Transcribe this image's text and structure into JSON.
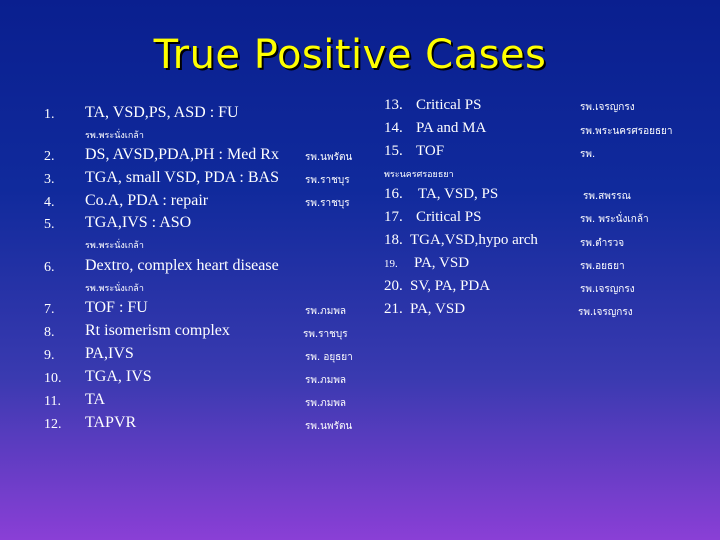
{
  "slide": {
    "title": "True Positive Cases",
    "left_items": [
      {
        "num": "1.",
        "text": "TA, VSD,PS, ASD  : FU",
        "sub": "รพ.พระนั่งเกล้า",
        "hosp": ""
      },
      {
        "num": "2.",
        "text": "DS, AVSD,PDA,PH : Med Rx",
        "sub": "",
        "hosp": "รพ.นพรัตน"
      },
      {
        "num": "3.",
        "text": "TGA, small VSD, PDA : BAS",
        "sub": "",
        "hosp": "รพ.ราชบุร"
      },
      {
        "num": "4.",
        "text": "Co.A, PDA : repair",
        "sub": "",
        "hosp": "รพ.ราชบุร"
      },
      {
        "num": "5.",
        "text": "TGA,IVS : ASO",
        "sub": "รพ.พระนั่งเกล้า",
        "hosp": ""
      },
      {
        "num": "6.",
        "text": "Dextro, complex heart disease",
        "sub": "รพ.พระนั่งเกล้า",
        "hosp": ""
      },
      {
        "num": "7.",
        "text": "TOF : FU",
        "sub": "",
        "hosp": "รพ.ภมพล"
      },
      {
        "num": "8.",
        "text": "Rt isomerism complex",
        "sub": "",
        "hosp": "รพ.ราชบุร"
      },
      {
        "num": "9.",
        "text": "PA,IVS",
        "sub": "",
        "hosp": "รพ. อยุธยา"
      },
      {
        "num": "10.",
        "text": "TGA, IVS",
        "sub": "",
        "hosp": "รพ.ภมพล"
      },
      {
        "num": "11.",
        "text": "TA",
        "sub": "",
        "hosp": "รพ.ภมพล"
      },
      {
        "num": "12.",
        "text": "TAPVR",
        "sub": "",
        "hosp": "รพ.นพรัตน"
      }
    ],
    "right_items": [
      {
        "num": "13.",
        "text": "Critical PS",
        "hosp": "รพ.เจรญกรง"
      },
      {
        "num": "14.",
        "text": "PA and MA",
        "hosp": "รพ.พระนครศรอยธยา"
      },
      {
        "num": "15.",
        "text": "TOF",
        "hosp": "รพ."
      },
      {
        "num": "",
        "text": "พระนครศรอยธยา",
        "hosp": ""
      },
      {
        "num": "16.",
        "text": "TA, VSD, PS",
        "hosp": "รพ.สพรรณ"
      },
      {
        "num": "17.",
        "text": "Critical PS",
        "hosp": "รพ. พระนั่งเกล้า"
      },
      {
        "num": "18.",
        "text": "TGA,VSD,hypo arch",
        "hosp": "รพ.ตำรวจ"
      },
      {
        "num": "19.",
        "text": "PA, VSD",
        "hosp": "รพ.อยธยา"
      },
      {
        "num": "20.",
        "text": "SV, PA, PDA",
        "hosp": "รพ.เจรญกรง"
      },
      {
        "num": "21.",
        "text": "PA, VSD",
        "hosp": "รพ.เจรญกรง"
      }
    ]
  }
}
